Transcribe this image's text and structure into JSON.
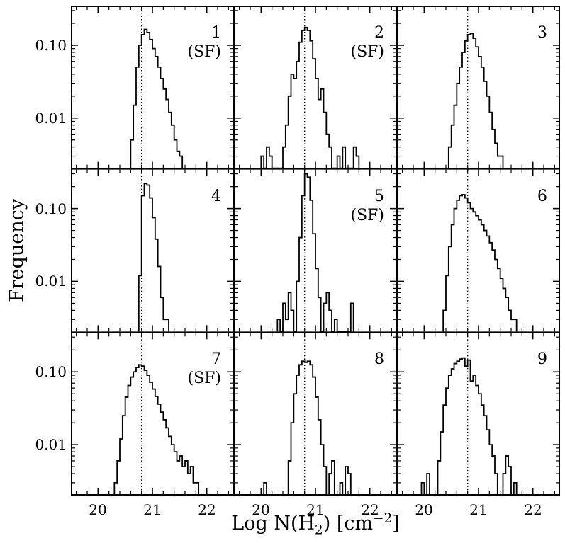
{
  "figure": {
    "ylabel": "Frequency",
    "xlabel_pre": "Log N(H",
    "xlabel_sub": "2",
    "xlabel_mid": ") [cm",
    "xlabel_sup": "−2",
    "xlabel_post": "]"
  },
  "chart_data": {
    "type": "bar",
    "subtype": "step-histogram-grid",
    "layout": "3x3 panels, shared log-frequency y-axis and Log N(H2) x-axis, vertical dotted reference line in every panel",
    "title": "",
    "xlabel": "Log N(H2) [cm^-2]",
    "ylabel": "Frequency",
    "x_range": [
      19.5,
      22.5
    ],
    "x_ticks": [
      20,
      21,
      22
    ],
    "x_tick_labels": [
      "20",
      "21",
      "22"
    ],
    "x_minor_tick_step": 0.2,
    "y_scale": "log",
    "y_range": [
      0.002,
      0.35
    ],
    "y_ticks": [
      0.1,
      0.01
    ],
    "y_tick_labels": [
      "0.10",
      "0.01"
    ],
    "dotted_line_x": 20.8,
    "bin_width": 0.05,
    "line_color": "#000000",
    "background": "#ffffff",
    "panels": [
      {
        "label": "1",
        "sf_label": "(SF)",
        "x0": 20.6,
        "values": [
          0.005,
          0.015,
          0.05,
          0.1,
          0.14,
          0.165,
          0.15,
          0.12,
          0.09,
          0.07,
          0.05,
          0.035,
          0.025,
          0.018,
          0.012,
          0.008,
          0.005,
          0.0035,
          0.003
        ]
      },
      {
        "label": "2",
        "sf_label": "(SF)",
        "x0": 20.0,
        "values": [
          0.003,
          0,
          0.004,
          0.003,
          0,
          0,
          0,
          0,
          0.004,
          0.008,
          0.02,
          0.04,
          0.035,
          0.06,
          0.11,
          0.16,
          0.175,
          0.16,
          0.115,
          0.065,
          0.035,
          0.018,
          0.025,
          0.012,
          0.006,
          0.004,
          0,
          0,
          0.003,
          0,
          0.004,
          0,
          0,
          0,
          0.004,
          0.003
        ]
      },
      {
        "label": "3",
        "sf_label": "",
        "x0": 20.45,
        "values": [
          0.004,
          0.008,
          0.015,
          0.03,
          0.05,
          0.08,
          0.115,
          0.14,
          0.145,
          0.125,
          0.095,
          0.07,
          0.05,
          0.032,
          0.02,
          0.012,
          0.007,
          0.0045,
          0.003,
          0.003
        ]
      },
      {
        "label": "4",
        "sf_label": "",
        "x0": 20.75,
        "values": [
          0.012,
          0.15,
          0.22,
          0.21,
          0.14,
          0.075,
          0.038,
          0.016,
          0.006,
          0.003,
          0.003
        ]
      },
      {
        "label": "5",
        "sf_label": "(SF)",
        "x0": 20.3,
        "values": [
          0.003,
          0,
          0.005,
          0.003,
          0.007,
          0.004,
          0,
          0.01,
          0.04,
          0.15,
          0.3,
          0.27,
          0.13,
          0.045,
          0.015,
          0.006,
          0,
          0.005,
          0.007,
          0.004,
          0,
          0.003,
          0,
          0,
          0,
          0,
          0,
          0.005
        ]
      },
      {
        "label": "6",
        "sf_label": "",
        "x0": 20.35,
        "values": [
          0.004,
          0.012,
          0.03,
          0.06,
          0.1,
          0.13,
          0.15,
          0.155,
          0.14,
          0.12,
          0.1,
          0.09,
          0.08,
          0.07,
          0.06,
          0.05,
          0.042,
          0.034,
          0.027,
          0.02,
          0.015,
          0.011,
          0.008,
          0.006,
          0.004,
          0.003,
          0.003
        ]
      },
      {
        "label": "7",
        "sf_label": "(SF)",
        "x0": 20.3,
        "values": [
          0.003,
          0.006,
          0.012,
          0.025,
          0.045,
          0.065,
          0.085,
          0.1,
          0.115,
          0.125,
          0.12,
          0.105,
          0.09,
          0.072,
          0.058,
          0.046,
          0.036,
          0.028,
          0.022,
          0.017,
          0.013,
          0.01,
          0.008,
          0.006,
          0.007,
          0.005,
          0.006,
          0.004,
          0.005,
          0.003,
          0.003
        ]
      },
      {
        "label": "8",
        "sf_label": "",
        "x0": 20.05,
        "values": [
          0.003,
          0,
          0,
          0,
          0,
          0,
          0,
          0,
          0,
          0.006,
          0.02,
          0.05,
          0.09,
          0.125,
          0.14,
          0.135,
          0.14,
          0.125,
          0.085,
          0.045,
          0.022,
          0.01,
          0.005,
          0,
          0.004,
          0.006,
          0,
          0,
          0.003,
          0,
          0.005,
          0.004
        ]
      },
      {
        "label": "9",
        "sf_label": "",
        "x0": 19.95,
        "values": [
          0.003,
          0,
          0.004,
          0,
          0,
          0,
          0.006,
          0.015,
          0.035,
          0.06,
          0.09,
          0.11,
          0.13,
          0.14,
          0.15,
          0.155,
          0.12,
          0.145,
          0.075,
          0.09,
          0.065,
          0.05,
          0.035,
          0.025,
          0.016,
          0.01,
          0.007,
          0.004,
          0,
          0,
          0.004,
          0.007,
          0.005,
          0,
          0.003
        ]
      }
    ]
  }
}
